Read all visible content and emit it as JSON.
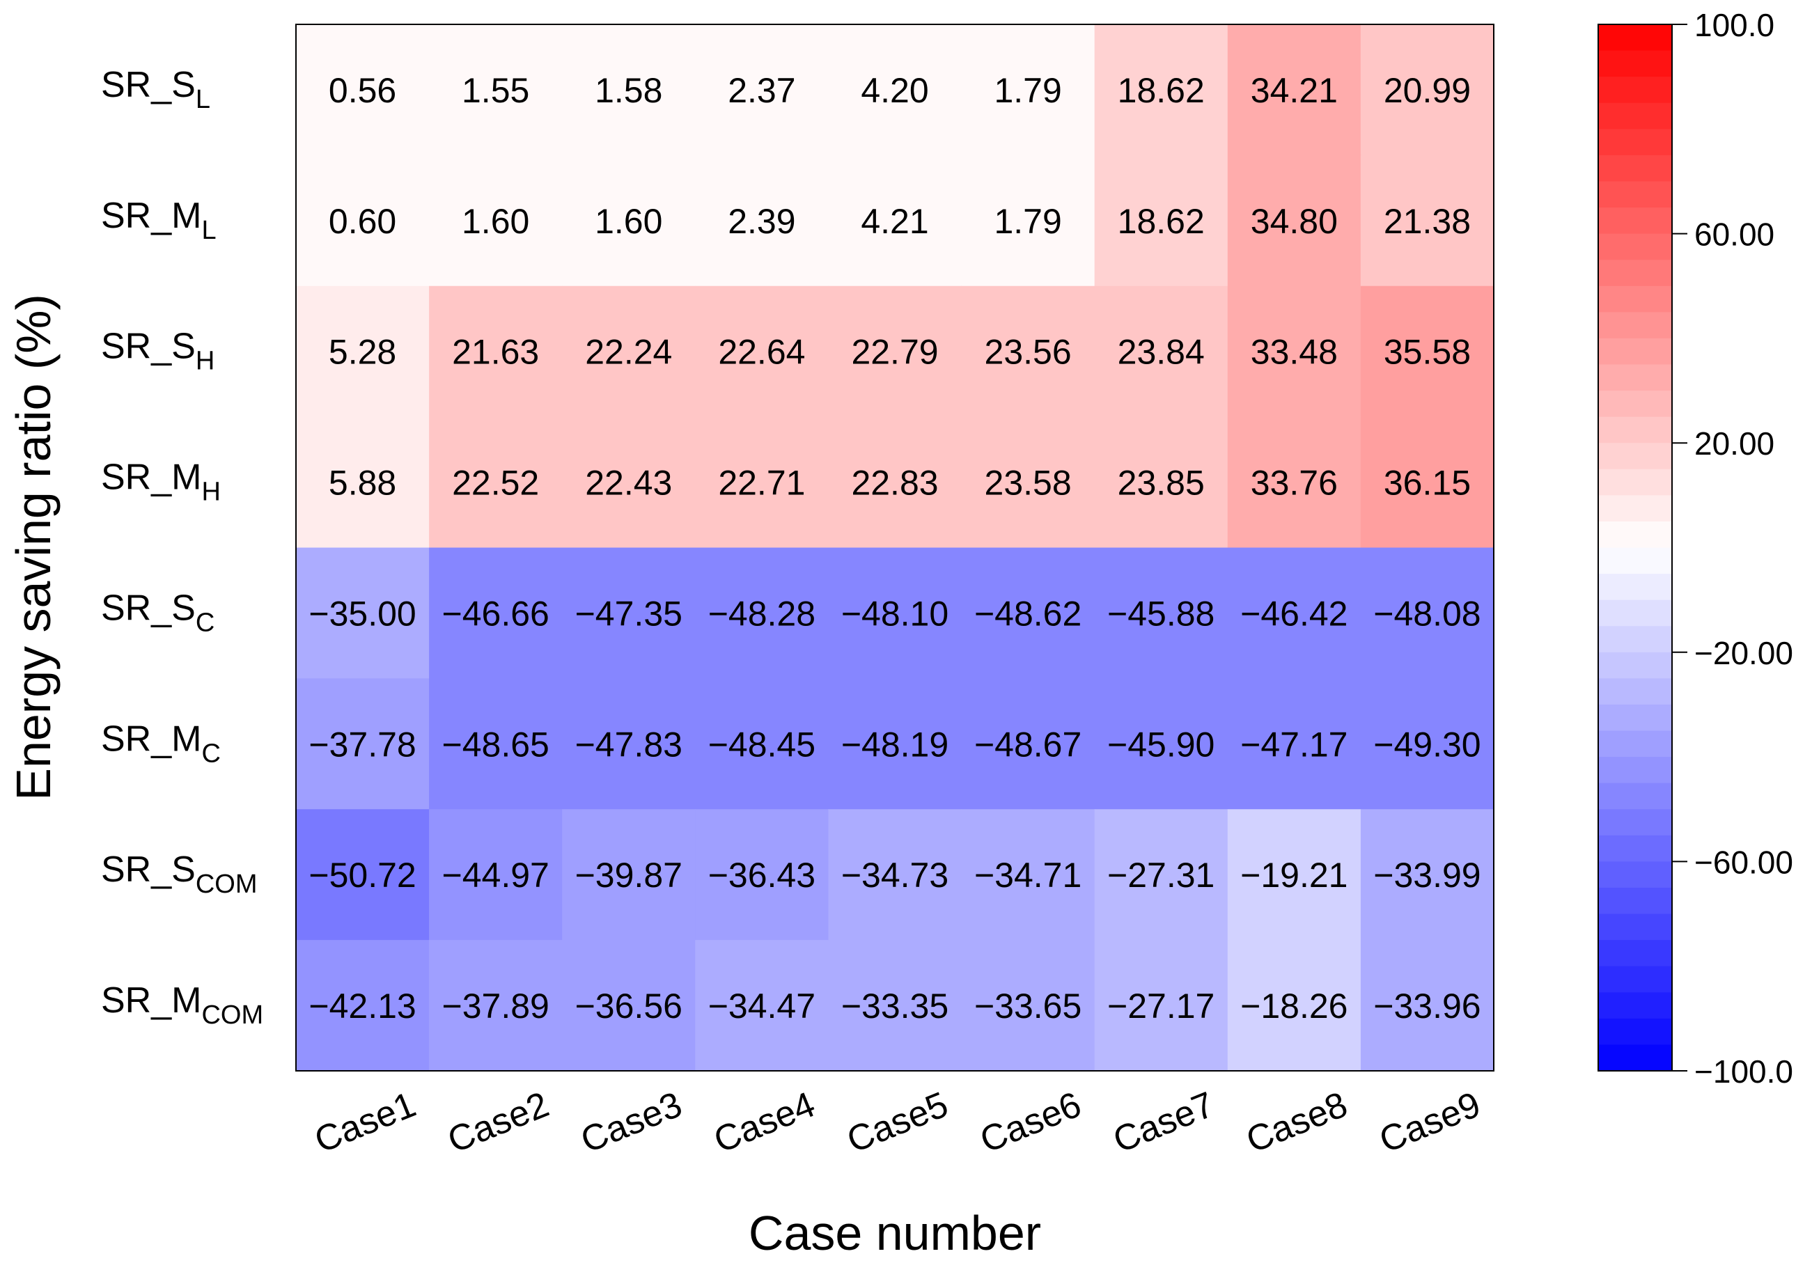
{
  "chart_data": {
    "type": "heatmap",
    "xlabel": "Case number",
    "ylabel": "Energy saving ratio (%)",
    "x_categories": [
      "Case1",
      "Case2",
      "Case3",
      "Case4",
      "Case5",
      "Case6",
      "Case7",
      "Case8",
      "Case9"
    ],
    "y_categories": [
      {
        "base": "SR_S",
        "sub": "L"
      },
      {
        "base": "SR_M",
        "sub": "L"
      },
      {
        "base": "SR_S",
        "sub": "H"
      },
      {
        "base": "SR_M",
        "sub": "H"
      },
      {
        "base": "SR_S",
        "sub": "C"
      },
      {
        "base": "SR_M",
        "sub": "C"
      },
      {
        "base": "SR_S",
        "sub": "COM"
      },
      {
        "base": "SR_M",
        "sub": "COM"
      }
    ],
    "cells": [
      [
        "0.56",
        "1.55",
        "1.58",
        "2.37",
        "4.20",
        "1.79",
        "18.62",
        "34.21",
        "20.99"
      ],
      [
        "0.60",
        "1.60",
        "1.60",
        "2.39",
        "4.21",
        "1.79",
        "18.62",
        "34.80",
        "21.38"
      ],
      [
        "5.28",
        "21.63",
        "22.24",
        "22.64",
        "22.79",
        "23.56",
        "23.84",
        "33.48",
        "35.58"
      ],
      [
        "5.88",
        "22.52",
        "22.43",
        "22.71",
        "22.83",
        "23.58",
        "23.85",
        "33.76",
        "36.15"
      ],
      [
        "−35.00",
        "−46.66",
        "−47.35",
        "−48.28",
        "−48.10",
        "−48.62",
        "−45.88",
        "−46.42",
        "−48.08"
      ],
      [
        "−37.78",
        "−48.65",
        "−47.83",
        "−48.45",
        "−48.19",
        "−48.67",
        "−45.90",
        "−47.17",
        "−49.30"
      ],
      [
        "−50.72",
        "−44.97",
        "−39.87",
        "−36.43",
        "−34.73",
        "−34.71",
        "−27.31",
        "−19.21",
        "−33.99"
      ],
      [
        "−42.13",
        "−37.89",
        "−36.56",
        "−34.47",
        "−33.35",
        "−33.65",
        "−27.17",
        "−18.26",
        "−33.96"
      ]
    ],
    "color_range": [
      -100,
      100
    ],
    "colorbar_steps": 40,
    "colorbar_ticks": [
      {
        "value": 100,
        "label": "100.0"
      },
      {
        "value": 60,
        "label": "60.00"
      },
      {
        "value": 20,
        "label": "20.00"
      },
      {
        "value": -20,
        "label": "−20.00"
      },
      {
        "value": -60,
        "label": "−60.00"
      },
      {
        "value": -100,
        "label": "−100.0"
      }
    ],
    "colors": {
      "low": "#0000ff",
      "mid": "#ffffff",
      "high": "#ff0000"
    }
  }
}
